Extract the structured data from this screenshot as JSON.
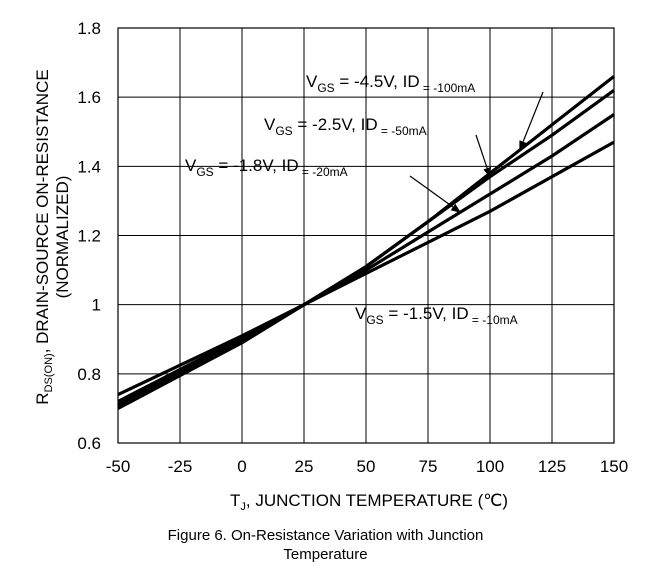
{
  "chart_data": {
    "type": "line",
    "xlabel": {
      "pre": "T",
      "sub": "J",
      "post": ", JUNCTION TEMPERATURE (℃)"
    },
    "ylabel": {
      "line1": {
        "pre": "R",
        "sub": "DS(ON)",
        "post": ", DRAIN-SOURCE ON-RESISTANCE"
      },
      "line2": "(NORMALIZED)"
    },
    "xlim": [
      -50,
      150
    ],
    "ylim": [
      0.6,
      1.8
    ],
    "xticks": [
      -50,
      -25,
      0,
      25,
      50,
      75,
      100,
      125,
      150
    ],
    "yticks": [
      0.6,
      0.8,
      1,
      1.2,
      1.4,
      1.6,
      1.8
    ],
    "xtick_labels": [
      "-50",
      "-25",
      "0",
      "25",
      "50",
      "75",
      "100",
      "125",
      "150"
    ],
    "ytick_labels": [
      "0.6",
      "0.8",
      "1",
      "1.2",
      "1.4",
      "1.6",
      "1.8"
    ],
    "grid": true,
    "series": [
      {
        "name": "VGS = -4.5V, ID = -100mA",
        "x": [
          -50,
          0,
          25,
          50,
          75,
          100,
          125,
          150
        ],
        "y": [
          0.7,
          0.89,
          1.0,
          1.11,
          1.24,
          1.38,
          1.52,
          1.66
        ]
      },
      {
        "name": "VGS = -2.5V, ID = -50mA",
        "x": [
          -50,
          0,
          25,
          50,
          75,
          100,
          125,
          150
        ],
        "y": [
          0.71,
          0.9,
          1.0,
          1.11,
          1.24,
          1.37,
          1.49,
          1.62
        ]
      },
      {
        "name": "VGS = -1.8V, ID = -20mA",
        "x": [
          -50,
          0,
          25,
          50,
          75,
          100,
          125,
          150
        ],
        "y": [
          0.72,
          0.905,
          1.0,
          1.1,
          1.21,
          1.32,
          1.43,
          1.55
        ]
      },
      {
        "name": "VGS = -1.5V, ID = -10mA",
        "x": [
          -50,
          0,
          25,
          50,
          75,
          100,
          125,
          150
        ],
        "y": [
          0.74,
          0.91,
          1.0,
          1.09,
          1.18,
          1.27,
          1.37,
          1.47
        ]
      }
    ],
    "annotations": [
      {
        "parts": [
          [
            "V",
            "GS",
            " = -4.5V, I"
          ],
          [
            "D",
            " = -100mA"
          ]
        ],
        "series": 0,
        "arrow_to_x": 112
      },
      {
        "parts": [
          [
            "V",
            "GS",
            " = -2.5V, I"
          ],
          [
            "D",
            " = -50mA"
          ]
        ],
        "series": 1,
        "arrow_to_x": 100
      },
      {
        "parts": [
          [
            "V",
            "GS",
            " = -1.8V, I"
          ],
          [
            "D",
            " = -20mA"
          ]
        ],
        "series": 2,
        "arrow_to_x": 88
      },
      {
        "parts": [
          [
            "V",
            "GS",
            " = -1.5V, I"
          ],
          [
            "D",
            " = -10mA"
          ]
        ],
        "series": 3,
        "arrow_to_x": null
      }
    ]
  },
  "caption": {
    "line1": "Figure 6. On-Resistance Variation with Junction",
    "line2": "Temperature"
  }
}
